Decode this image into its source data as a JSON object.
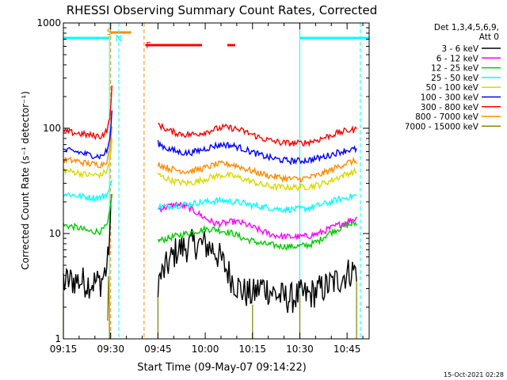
{
  "chart_data": {
    "type": "line",
    "title": "RHESSI Observing Summary Count Rates, Corrected",
    "xlabel": "Start Time (09-May-07 09:14:22)",
    "ylabel": "Corrected Count Rate (s⁻¹ detector⁻¹)",
    "x_unit": "minutes after 09:15",
    "xlim": [
      0,
      97
    ],
    "ylim": [
      1,
      1000
    ],
    "yscale": "log",
    "x_ticks": [
      {
        "x": 0,
        "label": "09:15"
      },
      {
        "x": 15,
        "label": "09:30"
      },
      {
        "x": 30,
        "label": "09:45"
      },
      {
        "x": 45,
        "label": "10:00"
      },
      {
        "x": 60,
        "label": "10:15"
      },
      {
        "x": 75,
        "label": "10:30"
      },
      {
        "x": 90,
        "label": "10:45"
      }
    ],
    "y_ticks": [
      {
        "y": 1,
        "label": "1"
      },
      {
        "y": 10,
        "label": "10"
      },
      {
        "y": 100,
        "label": "100"
      },
      {
        "y": 1000,
        "label": "1000"
      }
    ],
    "legend": {
      "placement": "right",
      "header": [
        "Det 1,3,4,5,6,9,",
        "Att 0"
      ]
    },
    "series": [
      {
        "name": "3 - 6 keV",
        "color": "#000000",
        "kind": "spiky",
        "points": [
          [
            0,
            3.5
          ],
          [
            4,
            3.6
          ],
          [
            8,
            3.4
          ],
          [
            12,
            3.5
          ],
          [
            14,
            5
          ],
          [
            15,
            14
          ],
          [
            15.4,
            22
          ],
          [
            30,
            3.5
          ],
          [
            33,
            5
          ],
          [
            36,
            7
          ],
          [
            39,
            7.5
          ],
          [
            42,
            8
          ],
          [
            45,
            7.8
          ],
          [
            48,
            7
          ],
          [
            51,
            5
          ],
          [
            54,
            3.5
          ],
          [
            57,
            2.8
          ],
          [
            60,
            2.6
          ],
          [
            63,
            3.2
          ],
          [
            66,
            2.8
          ],
          [
            69,
            2.5
          ],
          [
            72,
            2.4
          ],
          [
            75,
            2.6
          ],
          [
            78,
            2.6
          ],
          [
            81,
            2.9
          ],
          [
            84,
            3.2
          ],
          [
            87,
            3.6
          ],
          [
            90,
            4.2
          ],
          [
            93,
            4.6
          ]
        ]
      },
      {
        "name": "6 - 12 keV",
        "color": "#ff00ff",
        "kind": "line",
        "points": [
          [
            30,
            17
          ],
          [
            33,
            18
          ],
          [
            36,
            19
          ],
          [
            39,
            18
          ],
          [
            42,
            16
          ],
          [
            45,
            14
          ],
          [
            48,
            12.5
          ],
          [
            51,
            12.5
          ],
          [
            54,
            13
          ],
          [
            57,
            12.5
          ],
          [
            60,
            11.5
          ],
          [
            63,
            10.5
          ],
          [
            66,
            9.8
          ],
          [
            69,
            9.4
          ],
          [
            72,
            9.3
          ],
          [
            75,
            9.3
          ],
          [
            78,
            9.5
          ],
          [
            81,
            10
          ],
          [
            84,
            11
          ],
          [
            87,
            12
          ],
          [
            90,
            13
          ],
          [
            93,
            14
          ]
        ]
      },
      {
        "name": "12 - 25 keV",
        "color": "#00cc00",
        "kind": "line",
        "points": [
          [
            0,
            12
          ],
          [
            4,
            11.5
          ],
          [
            8,
            10.5
          ],
          [
            12,
            10.5
          ],
          [
            14,
            12
          ],
          [
            15,
            18
          ],
          [
            15.4,
            25
          ],
          [
            30,
            8.5
          ],
          [
            33,
            9
          ],
          [
            36,
            9.5
          ],
          [
            39,
            10
          ],
          [
            42,
            10.5
          ],
          [
            45,
            11
          ],
          [
            48,
            11
          ],
          [
            51,
            10.5
          ],
          [
            54,
            10
          ],
          [
            57,
            9
          ],
          [
            60,
            8.5
          ],
          [
            63,
            8
          ],
          [
            66,
            7.8
          ],
          [
            69,
            7.6
          ],
          [
            72,
            7.5
          ],
          [
            75,
            7.6
          ],
          [
            78,
            7.8
          ],
          [
            81,
            8.5
          ],
          [
            84,
            10
          ],
          [
            87,
            11
          ],
          [
            90,
            12
          ],
          [
            93,
            12.5
          ]
        ]
      },
      {
        "name": "25 - 50 keV",
        "color": "#00ffff",
        "kind": "line",
        "points": [
          [
            0,
            24
          ],
          [
            4,
            23
          ],
          [
            8,
            22
          ],
          [
            12,
            22
          ],
          [
            14,
            24
          ],
          [
            15,
            28
          ],
          [
            15.4,
            34
          ],
          [
            30,
            18
          ],
          [
            33,
            18
          ],
          [
            36,
            18.5
          ],
          [
            39,
            19
          ],
          [
            42,
            19.5
          ],
          [
            45,
            20
          ],
          [
            48,
            20.5
          ],
          [
            51,
            20.5
          ],
          [
            54,
            20
          ],
          [
            57,
            19.5
          ],
          [
            60,
            18.5
          ],
          [
            63,
            18
          ],
          [
            66,
            17.5
          ],
          [
            69,
            17
          ],
          [
            72,
            17
          ],
          [
            75,
            17
          ],
          [
            78,
            17.5
          ],
          [
            81,
            18.5
          ],
          [
            84,
            19.5
          ],
          [
            87,
            21
          ],
          [
            90,
            22
          ],
          [
            93,
            23
          ]
        ]
      },
      {
        "name": "50 - 100 keV",
        "color": "#d9d900",
        "kind": "line",
        "points": [
          [
            0,
            40
          ],
          [
            4,
            38
          ],
          [
            8,
            36
          ],
          [
            12,
            36
          ],
          [
            14,
            40
          ],
          [
            15,
            55
          ],
          [
            15.4,
            80
          ],
          [
            30,
            36
          ],
          [
            33,
            33
          ],
          [
            36,
            31
          ],
          [
            39,
            30
          ],
          [
            42,
            31
          ],
          [
            45,
            33
          ],
          [
            48,
            35
          ],
          [
            51,
            36
          ],
          [
            54,
            35
          ],
          [
            57,
            33
          ],
          [
            60,
            31
          ],
          [
            63,
            29
          ],
          [
            66,
            28
          ],
          [
            69,
            27.5
          ],
          [
            72,
            27.5
          ],
          [
            75,
            27.5
          ],
          [
            78,
            28
          ],
          [
            81,
            29
          ],
          [
            84,
            31
          ],
          [
            87,
            34
          ],
          [
            90,
            37
          ],
          [
            93,
            39
          ]
        ]
      },
      {
        "name": "100 - 300 keV",
        "color": "#0000ff",
        "kind": "line",
        "points": [
          [
            0,
            62
          ],
          [
            4,
            60
          ],
          [
            8,
            56
          ],
          [
            12,
            54
          ],
          [
            14,
            62
          ],
          [
            15,
            90
          ],
          [
            15.4,
            150
          ],
          [
            30,
            72
          ],
          [
            33,
            64
          ],
          [
            36,
            60
          ],
          [
            39,
            58
          ],
          [
            42,
            60
          ],
          [
            45,
            64
          ],
          [
            48,
            68
          ],
          [
            51,
            70
          ],
          [
            54,
            68
          ],
          [
            57,
            64
          ],
          [
            60,
            59
          ],
          [
            63,
            55
          ],
          [
            66,
            52
          ],
          [
            69,
            50
          ],
          [
            72,
            49
          ],
          [
            75,
            49
          ],
          [
            78,
            50
          ],
          [
            81,
            52
          ],
          [
            84,
            55
          ],
          [
            87,
            59
          ],
          [
            90,
            62
          ],
          [
            93,
            63
          ]
        ]
      },
      {
        "name": "300 - 800 keV",
        "color": "#ff0000",
        "kind": "line",
        "points": [
          [
            0,
            93
          ],
          [
            4,
            90
          ],
          [
            8,
            86
          ],
          [
            12,
            84
          ],
          [
            14,
            96
          ],
          [
            15,
            150
          ],
          [
            15.4,
            240
          ],
          [
            30,
            110
          ],
          [
            33,
            96
          ],
          [
            36,
            90
          ],
          [
            39,
            87
          ],
          [
            42,
            88
          ],
          [
            45,
            92
          ],
          [
            48,
            98
          ],
          [
            51,
            102
          ],
          [
            54,
            100
          ],
          [
            57,
            94
          ],
          [
            60,
            87
          ],
          [
            63,
            80
          ],
          [
            66,
            76
          ],
          [
            69,
            73
          ],
          [
            72,
            72
          ],
          [
            75,
            72
          ],
          [
            78,
            74
          ],
          [
            81,
            78
          ],
          [
            84,
            84
          ],
          [
            87,
            90
          ],
          [
            90,
            95
          ],
          [
            93,
            97
          ]
        ]
      },
      {
        "name": "800 - 7000 keV",
        "color": "#ff8c00",
        "kind": "line",
        "points": [
          [
            0,
            50
          ],
          [
            4,
            49
          ],
          [
            8,
            46
          ],
          [
            12,
            45
          ],
          [
            14,
            50
          ],
          [
            15,
            70
          ],
          [
            15.4,
            100
          ],
          [
            30,
            46
          ],
          [
            33,
            42
          ],
          [
            36,
            40
          ],
          [
            39,
            39
          ],
          [
            42,
            40
          ],
          [
            45,
            42
          ],
          [
            48,
            45
          ],
          [
            51,
            46
          ],
          [
            54,
            45
          ],
          [
            57,
            42
          ],
          [
            60,
            39
          ],
          [
            63,
            37
          ],
          [
            66,
            35
          ],
          [
            69,
            34
          ],
          [
            72,
            33
          ],
          [
            75,
            33
          ],
          [
            78,
            34
          ],
          [
            81,
            36
          ],
          [
            84,
            39
          ],
          [
            87,
            43
          ],
          [
            90,
            47
          ],
          [
            93,
            49
          ]
        ]
      },
      {
        "name": "7000 - 15000 keV",
        "color": "#808000",
        "kind": "noise",
        "points": [
          [
            0,
            2.2
          ],
          [
            14,
            2.2
          ],
          [
            15,
            6
          ],
          [
            30,
            1.6
          ],
          [
            60,
            1.6
          ],
          [
            75,
            1.6
          ],
          [
            93,
            2.0
          ]
        ]
      }
    ],
    "annotations": [
      {
        "label": "S",
        "color": "#ff8c00"
      },
      {
        "label": "N",
        "color": "#00ffff"
      },
      {
        "label": "F",
        "color": "#ff0000"
      }
    ],
    "footer_timestamp": "15-Oct-2021 02:28"
  }
}
